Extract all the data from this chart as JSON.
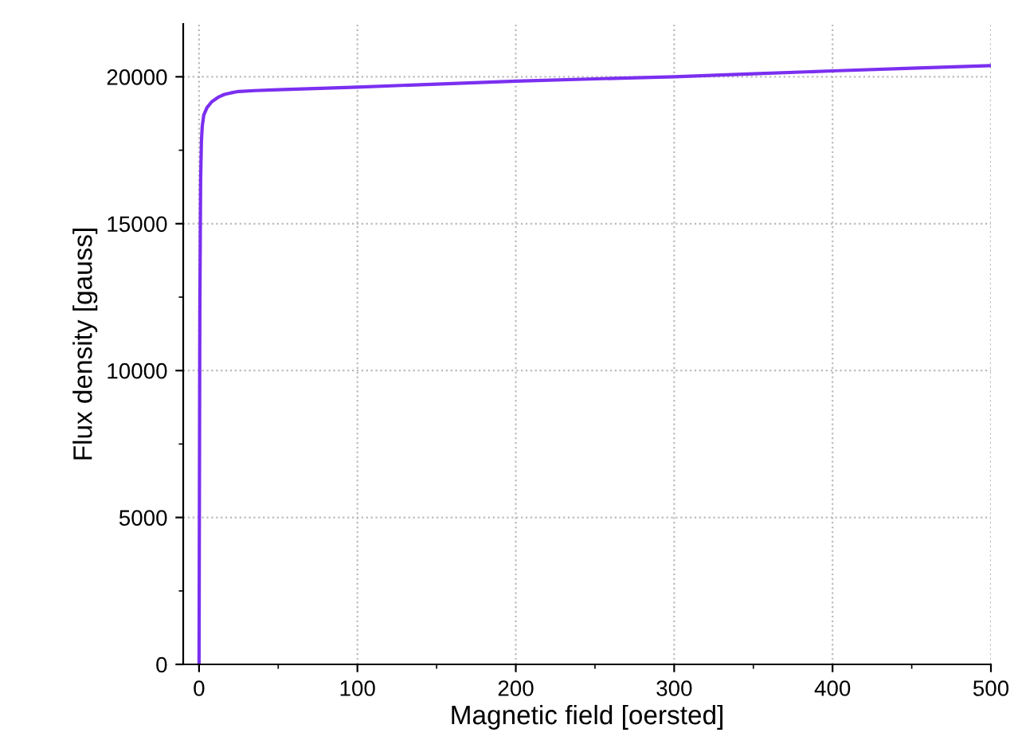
{
  "chart_data": {
    "type": "line",
    "xlabel": "Magnetic field [oersted]",
    "ylabel": "Flux density [gauss]",
    "xlim": [
      -10,
      500
    ],
    "ylim": [
      0,
      21800
    ],
    "xticks": [
      0,
      100,
      200,
      300,
      400,
      500
    ],
    "yticks": [
      0,
      5000,
      10000,
      15000,
      20000
    ],
    "grid": true,
    "line_style": "solid",
    "marker": "none",
    "series": [
      {
        "color": "#7b2ff0",
        "x": [
          0,
          0.5,
          1,
          1.5,
          2,
          3,
          5,
          8,
          12,
          16,
          20,
          25,
          35,
          50,
          100,
          150,
          200,
          250,
          300,
          350,
          400,
          450,
          500
        ],
        "values": [
          0,
          12000,
          16500,
          17800,
          18300,
          18700,
          18950,
          19150,
          19300,
          19400,
          19450,
          19500,
          19530,
          19560,
          19650,
          19750,
          19850,
          19930,
          20000,
          20100,
          20200,
          20290,
          20380
        ]
      }
    ]
  }
}
